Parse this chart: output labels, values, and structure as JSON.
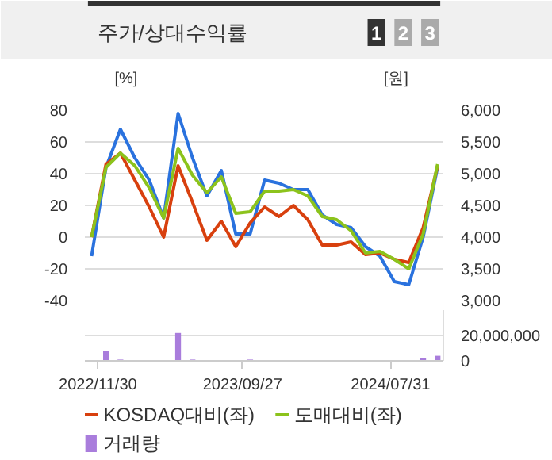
{
  "chart_data": [
    {
      "type": "line",
      "title": "주가/상대수익률",
      "annotations": [
        "1",
        "2",
        "3"
      ],
      "ylabel": "[%]",
      "y2label": "[원]",
      "x": [
        "2022-11-17",
        "2022-12-17",
        "2023-01-16",
        "2023-02-15",
        "2023-03-17",
        "2023-04-16",
        "2023-05-16",
        "2023-06-15",
        "2023-07-15",
        "2023-08-14",
        "2023-09-13",
        "2023-10-13",
        "2023-11-12",
        "2023-12-12",
        "2024-01-11",
        "2024-02-10",
        "2024-03-11",
        "2024-04-10",
        "2024-05-10",
        "2024-06-09",
        "2024-07-09",
        "2024-08-08",
        "2024-09-07",
        "2024-10-07",
        "2024-11-06"
      ],
      "xlim": [
        "2022-11-03",
        "2024-11-18"
      ],
      "ylim": [
        -40,
        80
      ],
      "yticks": [
        -40,
        -20,
        0,
        20,
        40,
        60,
        80
      ],
      "y2lim": [
        3000,
        6000
      ],
      "y2ticks": [
        {
          "value": 3000,
          "label": "3,000"
        },
        {
          "value": 3500,
          "label": "3,500"
        },
        {
          "value": 4000,
          "label": "4,000"
        },
        {
          "value": 4500,
          "label": "4,500"
        },
        {
          "value": 5000,
          "label": "5,000"
        },
        {
          "value": 5500,
          "label": "5,500"
        },
        {
          "value": 6000,
          "label": "6,000"
        }
      ],
      "tick_labels": "y",
      "grid": "y",
      "legend": "bottom",
      "series": [
        {
          "color": "#2a72de",
          "axis": "y2",
          "values": [
            3700,
            5100,
            5700,
            5250,
            4900,
            4300,
            5950,
            5250,
            4650,
            5050,
            4050,
            4050,
            4900,
            4850,
            4750,
            4750,
            4350,
            4200,
            4150,
            3850,
            3700,
            3300,
            3250,
            4000,
            5100
          ]
        },
        {
          "name": "KOSDAQ대비(좌)",
          "color": "#d8400e",
          "values": [
            0,
            46,
            53,
            36,
            19,
            0,
            45,
            22,
            -2,
            10,
            -6,
            9,
            19,
            13,
            20,
            11,
            -5,
            -5,
            -3,
            -11,
            -10,
            -14,
            -16,
            6,
            45
          ]
        },
        {
          "name": "도매대비(좌)",
          "color": "#8cc31c",
          "values": [
            0,
            44,
            53,
            45,
            31,
            12,
            56,
            39,
            28,
            38,
            15,
            16,
            29,
            29,
            30,
            26,
            13,
            11,
            4,
            -10,
            -9,
            -14,
            -20,
            2,
            46
          ]
        }
      ]
    },
    {
      "type": "bar",
      "x": [
        "2022-11-17",
        "2022-12-17",
        "2023-01-16",
        "2023-02-15",
        "2023-03-17",
        "2023-04-16",
        "2023-05-16",
        "2023-06-15",
        "2023-07-15",
        "2023-08-14",
        "2023-09-13",
        "2023-10-13",
        "2023-11-12",
        "2023-12-12",
        "2024-01-11",
        "2024-02-10",
        "2024-03-11",
        "2024-04-10",
        "2024-05-10",
        "2024-06-09",
        "2024-07-09",
        "2024-08-08",
        "2024-09-07",
        "2024-10-07",
        "2024-11-06"
      ],
      "xlim": [
        "2022-11-03",
        "2024-11-18"
      ],
      "xticks": [
        {
          "value": "2022-11-30",
          "label": "2022/11/30"
        },
        {
          "value": "2023-09-27",
          "label": "2023/09/27"
        },
        {
          "value": "2024-07-31",
          "label": "2024/07/31"
        }
      ],
      "y2lim": [
        0,
        40000000
      ],
      "y2ticks": [
        0,
        {
          "value": 20000000,
          "label": "20,000,000"
        }
      ],
      "grid": "y",
      "legend": "bottom",
      "series": [
        {
          "name": "거래량",
          "color": "#a97ddc",
          "axis": "y2",
          "values": [
            0,
            8000000,
            1000000,
            0,
            0,
            0,
            22000000,
            1000000,
            0,
            0,
            0,
            1000000,
            0,
            0,
            0,
            0,
            0,
            0,
            0,
            0,
            0,
            0,
            0,
            2000000,
            4000000
          ]
        }
      ]
    }
  ]
}
